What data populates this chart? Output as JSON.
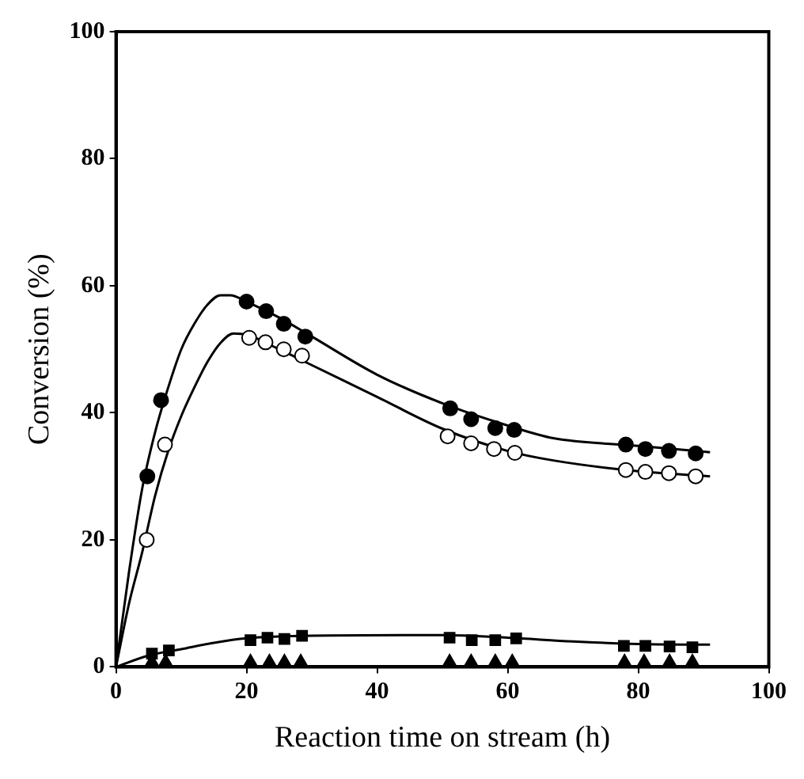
{
  "chart_data": {
    "type": "scatter",
    "xlabel": "Reaction time on stream (h)",
    "ylabel": "Conversion (%)",
    "xlim": [
      0,
      100
    ],
    "ylim": [
      0,
      100
    ],
    "xticks": [
      0,
      20,
      40,
      60,
      80,
      100
    ],
    "yticks": [
      0,
      20,
      40,
      60,
      80,
      100
    ],
    "grid": false,
    "legend": false,
    "series": [
      {
        "type": "scatter",
        "marker": "circle",
        "color": "#000000",
        "x": [
          4.8,
          6.9,
          20,
          23,
          25.7,
          29,
          51.2,
          54.4,
          58.1,
          61,
          78.1,
          81.1,
          84.7,
          88.8
        ],
        "values": [
          30,
          42,
          57.5,
          56,
          54,
          52,
          40.7,
          39,
          37.6,
          37.3,
          35,
          34.3,
          34,
          33.6
        ]
      },
      {
        "type": "scatter",
        "marker": "circle",
        "color": "#ffffff",
        "x": [
          4.7,
          7.5,
          20.4,
          22.9,
          25.7,
          28.5,
          50.8,
          54.4,
          57.9,
          61.1,
          78.1,
          81.1,
          84.7,
          88.8
        ],
        "values": [
          20,
          35,
          51.8,
          51.1,
          50,
          49,
          36.3,
          35.2,
          34.3,
          33.7,
          31,
          30.7,
          30.5,
          30
        ]
      },
      {
        "type": "scatter",
        "marker": "square",
        "color": "#000000",
        "x": [
          5.5,
          8.1,
          20.6,
          23.2,
          25.8,
          28.5,
          51.1,
          54.5,
          58.1,
          61.3,
          77.8,
          81.1,
          84.8,
          88.3
        ],
        "values": [
          2.1,
          2.6,
          4.2,
          4.6,
          4.4,
          4.9,
          4.6,
          4.2,
          4.2,
          4.5,
          3.3,
          3.3,
          3.2,
          3.1
        ]
      },
      {
        "type": "scatter",
        "marker": "triangle",
        "color": "#000000",
        "x": [
          5.5,
          7.6,
          20.6,
          23.5,
          25.8,
          28.3,
          51.1,
          54.4,
          58.1,
          60.7,
          77.9,
          80.9,
          84.8,
          88.3
        ],
        "values": [
          0.8,
          0.8,
          0.8,
          0.8,
          0.8,
          0.8,
          0.8,
          0.8,
          0.8,
          0.8,
          0.8,
          0.8,
          0.8,
          0.8
        ]
      },
      {
        "type": "line",
        "marker": "none",
        "line_style": "solid",
        "color": "#000000",
        "x": [
          0,
          2,
          4,
          6,
          8,
          10,
          12,
          14,
          16,
          17.5,
          20,
          25,
          30,
          40,
          50,
          60,
          67,
          80,
          91
        ],
        "values": [
          0,
          15,
          28,
          37,
          44,
          50,
          54,
          57,
          58.5,
          58.5,
          57.5,
          55,
          52,
          46,
          41.5,
          38,
          36,
          34.8,
          33.8
        ]
      },
      {
        "type": "line",
        "marker": "none",
        "line_style": "solid",
        "color": "#000000",
        "x": [
          0,
          2,
          4,
          6,
          8,
          10,
          12,
          14,
          16,
          18,
          20,
          25,
          30,
          40,
          50,
          60,
          67,
          80,
          91
        ],
        "values": [
          0,
          10,
          18,
          27,
          34,
          39.5,
          44,
          48,
          51,
          52.5,
          52.3,
          50,
          47.5,
          42.5,
          37.5,
          34,
          32.5,
          30.8,
          30
        ]
      },
      {
        "type": "line",
        "marker": "none",
        "line_style": "solid",
        "color": "#000000",
        "x": [
          0,
          5,
          10,
          15,
          20,
          30,
          50,
          60,
          70,
          80,
          91
        ],
        "values": [
          0,
          1.8,
          2.8,
          3.8,
          4.5,
          4.9,
          5,
          4.6,
          4,
          3.6,
          3.5
        ]
      }
    ]
  }
}
